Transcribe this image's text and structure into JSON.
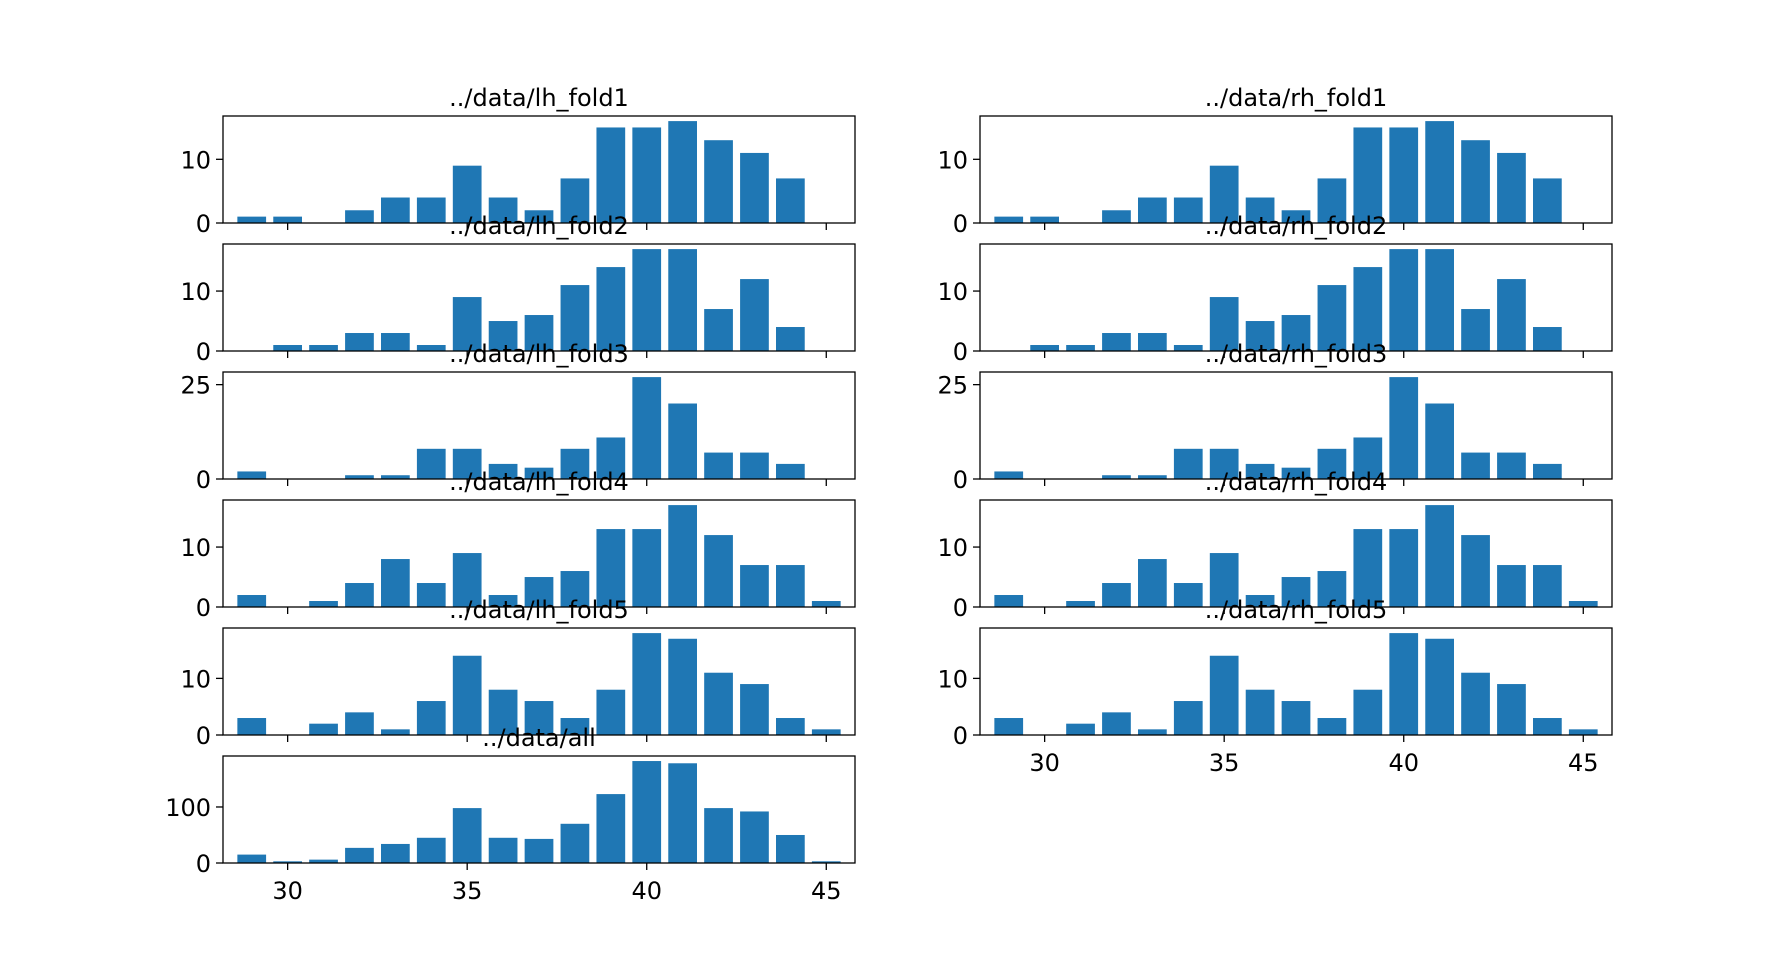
{
  "figure": {
    "background": "#ffffff",
    "bar_color": "#1f77b4"
  },
  "chart_data": [
    {
      "type": "bar",
      "title": "../data/lh_fold1",
      "x": [
        29,
        30,
        31,
        32,
        33,
        34,
        35,
        36,
        37,
        38,
        39,
        40,
        41,
        42,
        43,
        44,
        45
      ],
      "values": [
        1,
        1,
        0,
        2,
        4,
        4,
        9,
        4,
        2,
        7,
        15,
        15,
        16,
        13,
        11,
        7,
        0
      ],
      "xlim": [
        28.2,
        45.8
      ],
      "ylim": [
        0,
        16.8
      ],
      "yticks": [
        0,
        10
      ],
      "xticks": [
        30,
        35,
        40,
        45
      ],
      "show_xtick_labels": false
    },
    {
      "type": "bar",
      "title": "../data/rh_fold1",
      "x": [
        29,
        30,
        31,
        32,
        33,
        34,
        35,
        36,
        37,
        38,
        39,
        40,
        41,
        42,
        43,
        44,
        45
      ],
      "values": [
        1,
        1,
        0,
        2,
        4,
        4,
        9,
        4,
        2,
        7,
        15,
        15,
        16,
        13,
        11,
        7,
        0
      ],
      "xlim": [
        28.2,
        45.8
      ],
      "ylim": [
        0,
        16.8
      ],
      "yticks": [
        0,
        10
      ],
      "xticks": [
        30,
        35,
        40,
        45
      ],
      "show_xtick_labels": false
    },
    {
      "type": "bar",
      "title": "../data/lh_fold2",
      "x": [
        29,
        30,
        31,
        32,
        33,
        34,
        35,
        36,
        37,
        38,
        39,
        40,
        41,
        42,
        43,
        44,
        45
      ],
      "values": [
        0,
        1,
        1,
        3,
        3,
        1,
        9,
        5,
        6,
        11,
        14,
        17,
        17,
        7,
        12,
        4,
        0
      ],
      "xlim": [
        28.2,
        45.8
      ],
      "ylim": [
        0,
        17.85
      ],
      "yticks": [
        0,
        10
      ],
      "xticks": [
        30,
        35,
        40,
        45
      ],
      "show_xtick_labels": false
    },
    {
      "type": "bar",
      "title": "../data/rh_fold2",
      "x": [
        29,
        30,
        31,
        32,
        33,
        34,
        35,
        36,
        37,
        38,
        39,
        40,
        41,
        42,
        43,
        44,
        45
      ],
      "values": [
        0,
        1,
        1,
        3,
        3,
        1,
        9,
        5,
        6,
        11,
        14,
        17,
        17,
        7,
        12,
        4,
        0
      ],
      "xlim": [
        28.2,
        45.8
      ],
      "ylim": [
        0,
        17.85
      ],
      "yticks": [
        0,
        10
      ],
      "xticks": [
        30,
        35,
        40,
        45
      ],
      "show_xtick_labels": false
    },
    {
      "type": "bar",
      "title": "../data/lh_fold3",
      "x": [
        29,
        30,
        31,
        32,
        33,
        34,
        35,
        36,
        37,
        38,
        39,
        40,
        41,
        42,
        43,
        44,
        45
      ],
      "values": [
        2,
        0,
        0,
        1,
        1,
        8,
        8,
        4,
        3,
        8,
        11,
        27,
        20,
        7,
        7,
        4,
        0
      ],
      "xlim": [
        28.2,
        45.8
      ],
      "ylim": [
        0,
        28.35
      ],
      "yticks": [
        0,
        25
      ],
      "xticks": [
        30,
        35,
        40,
        45
      ],
      "show_xtick_labels": false
    },
    {
      "type": "bar",
      "title": "../data/rh_fold3",
      "x": [
        29,
        30,
        31,
        32,
        33,
        34,
        35,
        36,
        37,
        38,
        39,
        40,
        41,
        42,
        43,
        44,
        45
      ],
      "values": [
        2,
        0,
        0,
        1,
        1,
        8,
        8,
        4,
        3,
        8,
        11,
        27,
        20,
        7,
        7,
        4,
        0
      ],
      "xlim": [
        28.2,
        45.8
      ],
      "ylim": [
        0,
        28.35
      ],
      "yticks": [
        0,
        25
      ],
      "xticks": [
        30,
        35,
        40,
        45
      ],
      "show_xtick_labels": false
    },
    {
      "type": "bar",
      "title": "../data/lh_fold4",
      "x": [
        29,
        30,
        31,
        32,
        33,
        34,
        35,
        36,
        37,
        38,
        39,
        40,
        41,
        42,
        43,
        44,
        45
      ],
      "values": [
        2,
        0,
        1,
        4,
        8,
        4,
        9,
        2,
        5,
        6,
        13,
        13,
        17,
        12,
        7,
        7,
        1
      ],
      "xlim": [
        28.2,
        45.8
      ],
      "ylim": [
        0,
        17.85
      ],
      "yticks": [
        0,
        10
      ],
      "xticks": [
        30,
        35,
        40,
        45
      ],
      "show_xtick_labels": false
    },
    {
      "type": "bar",
      "title": "../data/rh_fold4",
      "x": [
        29,
        30,
        31,
        32,
        33,
        34,
        35,
        36,
        37,
        38,
        39,
        40,
        41,
        42,
        43,
        44,
        45
      ],
      "values": [
        2,
        0,
        1,
        4,
        8,
        4,
        9,
        2,
        5,
        6,
        13,
        13,
        17,
        12,
        7,
        7,
        1
      ],
      "xlim": [
        28.2,
        45.8
      ],
      "ylim": [
        0,
        17.85
      ],
      "yticks": [
        0,
        10
      ],
      "xticks": [
        30,
        35,
        40,
        45
      ],
      "show_xtick_labels": false
    },
    {
      "type": "bar",
      "title": "../data/lh_fold5",
      "x": [
        29,
        30,
        31,
        32,
        33,
        34,
        35,
        36,
        37,
        38,
        39,
        40,
        41,
        42,
        43,
        44,
        45
      ],
      "values": [
        3,
        0,
        2,
        4,
        1,
        6,
        14,
        8,
        6,
        3,
        8,
        18,
        17,
        11,
        9,
        3,
        1
      ],
      "xlim": [
        28.2,
        45.8
      ],
      "ylim": [
        0,
        18.9
      ],
      "yticks": [
        0,
        10
      ],
      "xticks": [
        30,
        35,
        40,
        45
      ],
      "show_xtick_labels": false
    },
    {
      "type": "bar",
      "title": "../data/rh_fold5",
      "x": [
        29,
        30,
        31,
        32,
        33,
        34,
        35,
        36,
        37,
        38,
        39,
        40,
        41,
        42,
        43,
        44,
        45
      ],
      "values": [
        3,
        0,
        2,
        4,
        1,
        6,
        14,
        8,
        6,
        3,
        8,
        18,
        17,
        11,
        9,
        3,
        1
      ],
      "xlim": [
        28.2,
        45.8
      ],
      "ylim": [
        0,
        18.9
      ],
      "yticks": [
        0,
        10
      ],
      "xticks": [
        30,
        35,
        40,
        45
      ],
      "show_xtick_labels": true
    },
    {
      "type": "bar",
      "title": "../data/all",
      "x": [
        29,
        30,
        31,
        32,
        33,
        34,
        35,
        36,
        37,
        38,
        39,
        40,
        41,
        42,
        43,
        44,
        45
      ],
      "values": [
        15,
        3,
        6,
        27,
        34,
        45,
        98,
        45,
        43,
        70,
        123,
        182,
        178,
        98,
        92,
        50,
        3
      ],
      "xlim": [
        28.2,
        45.8
      ],
      "ylim": [
        0,
        191
      ],
      "yticks": [
        0,
        100
      ],
      "xticks": [
        30,
        35,
        40,
        45
      ],
      "show_xtick_labels": true
    }
  ]
}
